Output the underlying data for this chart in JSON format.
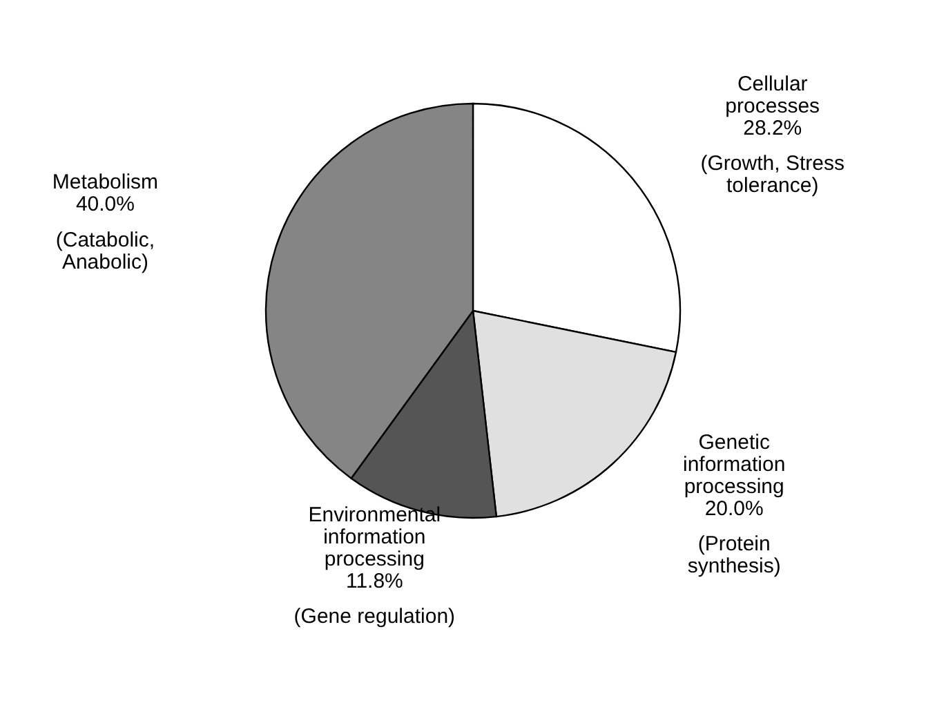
{
  "chart_data": {
    "type": "pie",
    "categories": [
      "Cellular processes",
      "Genetic information processing",
      "Environmental information processing",
      "Metabolism"
    ],
    "values": [
      28.2,
      20.0,
      11.8,
      40.0
    ],
    "colors": [
      "#ffffff",
      "#e0e0e0",
      "#555555",
      "#858585"
    ],
    "value_labels": [
      "28.2%",
      "20.0%",
      "11.8%",
      "40.0%"
    ],
    "annotations": [
      "(Growth, Stress tolerance)",
      "(Protein synthesis)",
      "(Gene regulation)",
      "(Catabolic, Anabolic)"
    ]
  }
}
